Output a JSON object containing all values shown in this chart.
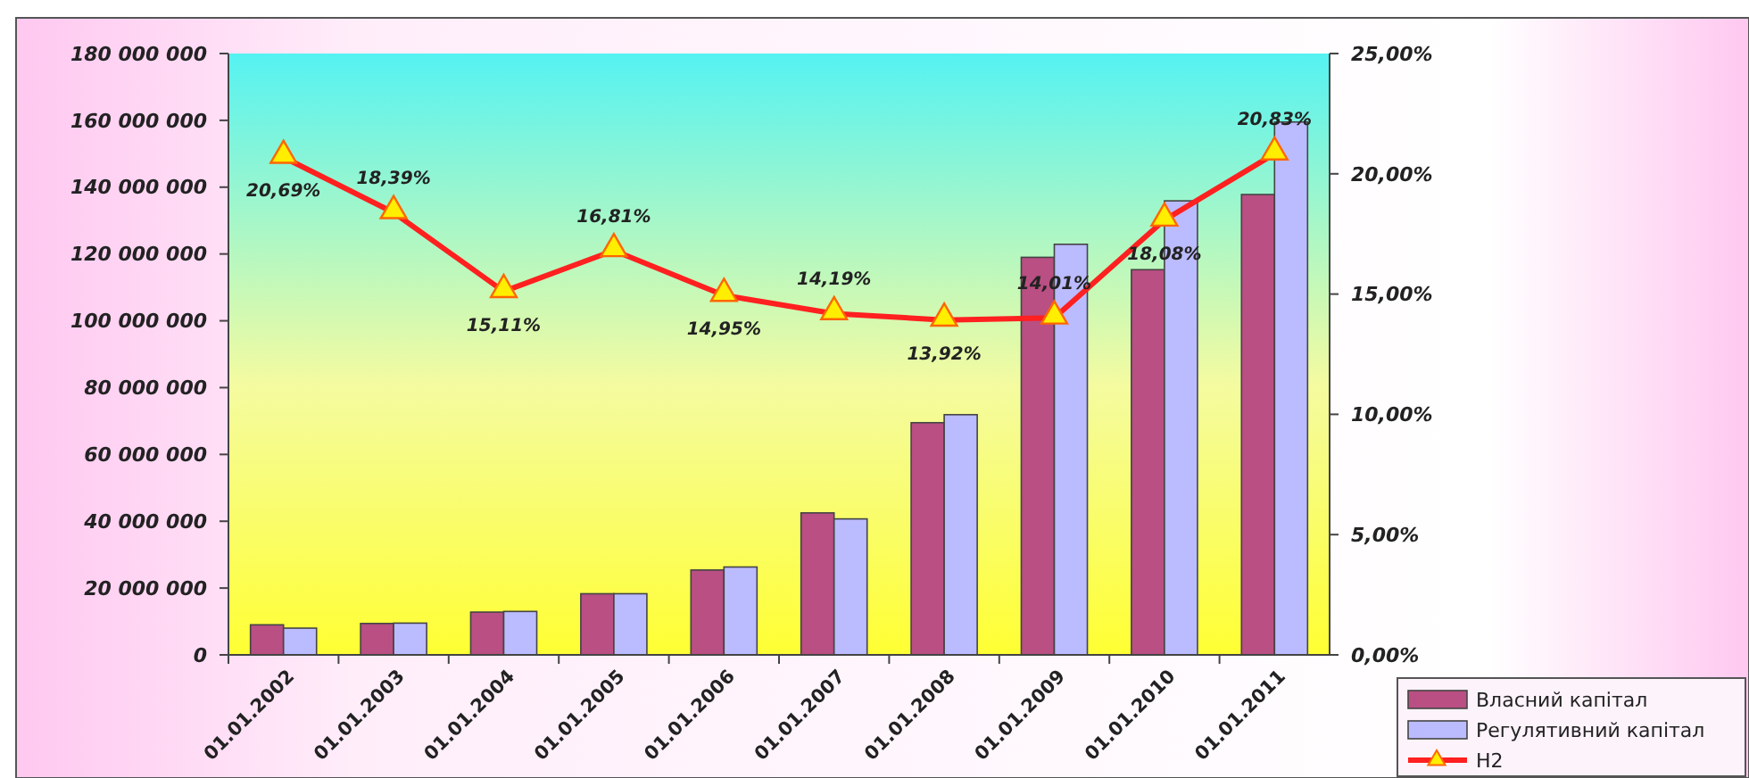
{
  "chart_data": {
    "type": "bar",
    "categories": [
      "01.01.2002",
      "01.01.2003",
      "01.01.2004",
      "01.01.2005",
      "01.01.2006",
      "01.01.2007",
      "01.01.2008",
      "01.01.2009",
      "01.01.2010",
      "01.01.2011"
    ],
    "series": [
      {
        "name": "Власний капітал",
        "color": "#b94f82",
        "values": [
          9000000,
          9400000,
          12800000,
          18300000,
          25400000,
          42500000,
          69500000,
          119000000,
          115300000,
          137800000
        ]
      },
      {
        "name": "Регулятивний капітал",
        "color": "#bbbbff",
        "values": [
          8000000,
          9500000,
          13000000,
          18300000,
          26300000,
          40700000,
          71900000,
          122900000,
          135900000,
          159500000
        ]
      },
      {
        "name": "Н2",
        "type": "line",
        "axis": "y2",
        "color": "#ff2020",
        "marker": "triangle",
        "values": [
          20.69,
          18.39,
          15.11,
          16.81,
          14.95,
          14.19,
          13.92,
          14.01,
          18.08,
          20.83
        ],
        "value_labels": [
          "20,69%",
          "18,39%",
          "15,11%",
          "16,81%",
          "14,95%",
          "14,19%",
          "13,92%",
          "14,01%",
          "18,08%",
          "20,83%"
        ]
      }
    ],
    "ylim": [
      0,
      180000000
    ],
    "yticks": [
      {
        "value": 0,
        "label": "0"
      },
      {
        "value": 20000000,
        "label": "20 000 000"
      },
      {
        "value": 40000000,
        "label": "40 000 000"
      },
      {
        "value": 60000000,
        "label": "60 000 000"
      },
      {
        "value": 80000000,
        "label": "80 000 000"
      },
      {
        "value": 100000000,
        "label": "100 000 000"
      },
      {
        "value": 120000000,
        "label": "120 000 000"
      },
      {
        "value": 140000000,
        "label": "140 000 000"
      },
      {
        "value": 160000000,
        "label": "160 000 000"
      },
      {
        "value": 180000000,
        "label": "180 000 000"
      }
    ],
    "y2lim": [
      0,
      25
    ],
    "y2ticks": [
      {
        "value": 0,
        "label": "0,00%"
      },
      {
        "value": 5,
        "label": "5,00%"
      },
      {
        "value": 10,
        "label": "10,00%"
      },
      {
        "value": 15,
        "label": "15,00%"
      },
      {
        "value": 20,
        "label": "20,00%"
      },
      {
        "value": 25,
        "label": "25,00%"
      }
    ],
    "grid": false,
    "legend": "bottom right"
  }
}
